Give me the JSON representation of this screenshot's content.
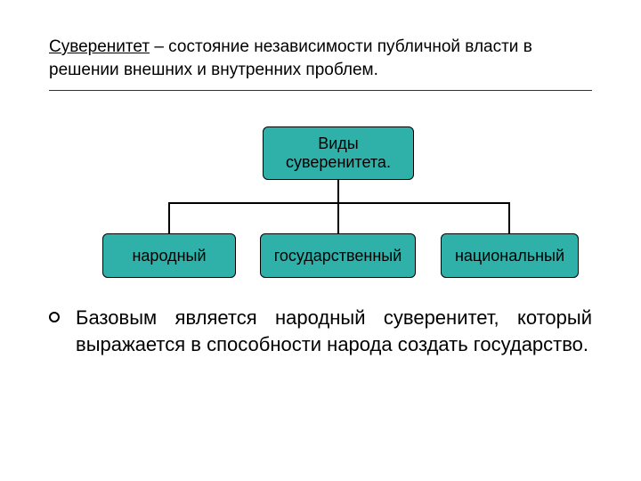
{
  "colors": {
    "box_fill": "#2fb0a9",
    "box_border": "#000000",
    "text": "#000000",
    "background": "#ffffff"
  },
  "title": {
    "term": "Суверенитет",
    "definition": " – состояние независимости публичной власти в решении внешних и внутренних проблем."
  },
  "diagram": {
    "type": "tree",
    "root": {
      "label": "Виды суверенитета."
    },
    "children": [
      {
        "label": "народный"
      },
      {
        "label": "государственный"
      },
      {
        "label": "национальный"
      }
    ]
  },
  "bullet": {
    "text": "Базовым является народный суверенитет, который выражается в способности народа создать государство."
  },
  "fonts": {
    "title_fontsize": 19,
    "box_fontsize": 18,
    "body_fontsize": 22
  }
}
